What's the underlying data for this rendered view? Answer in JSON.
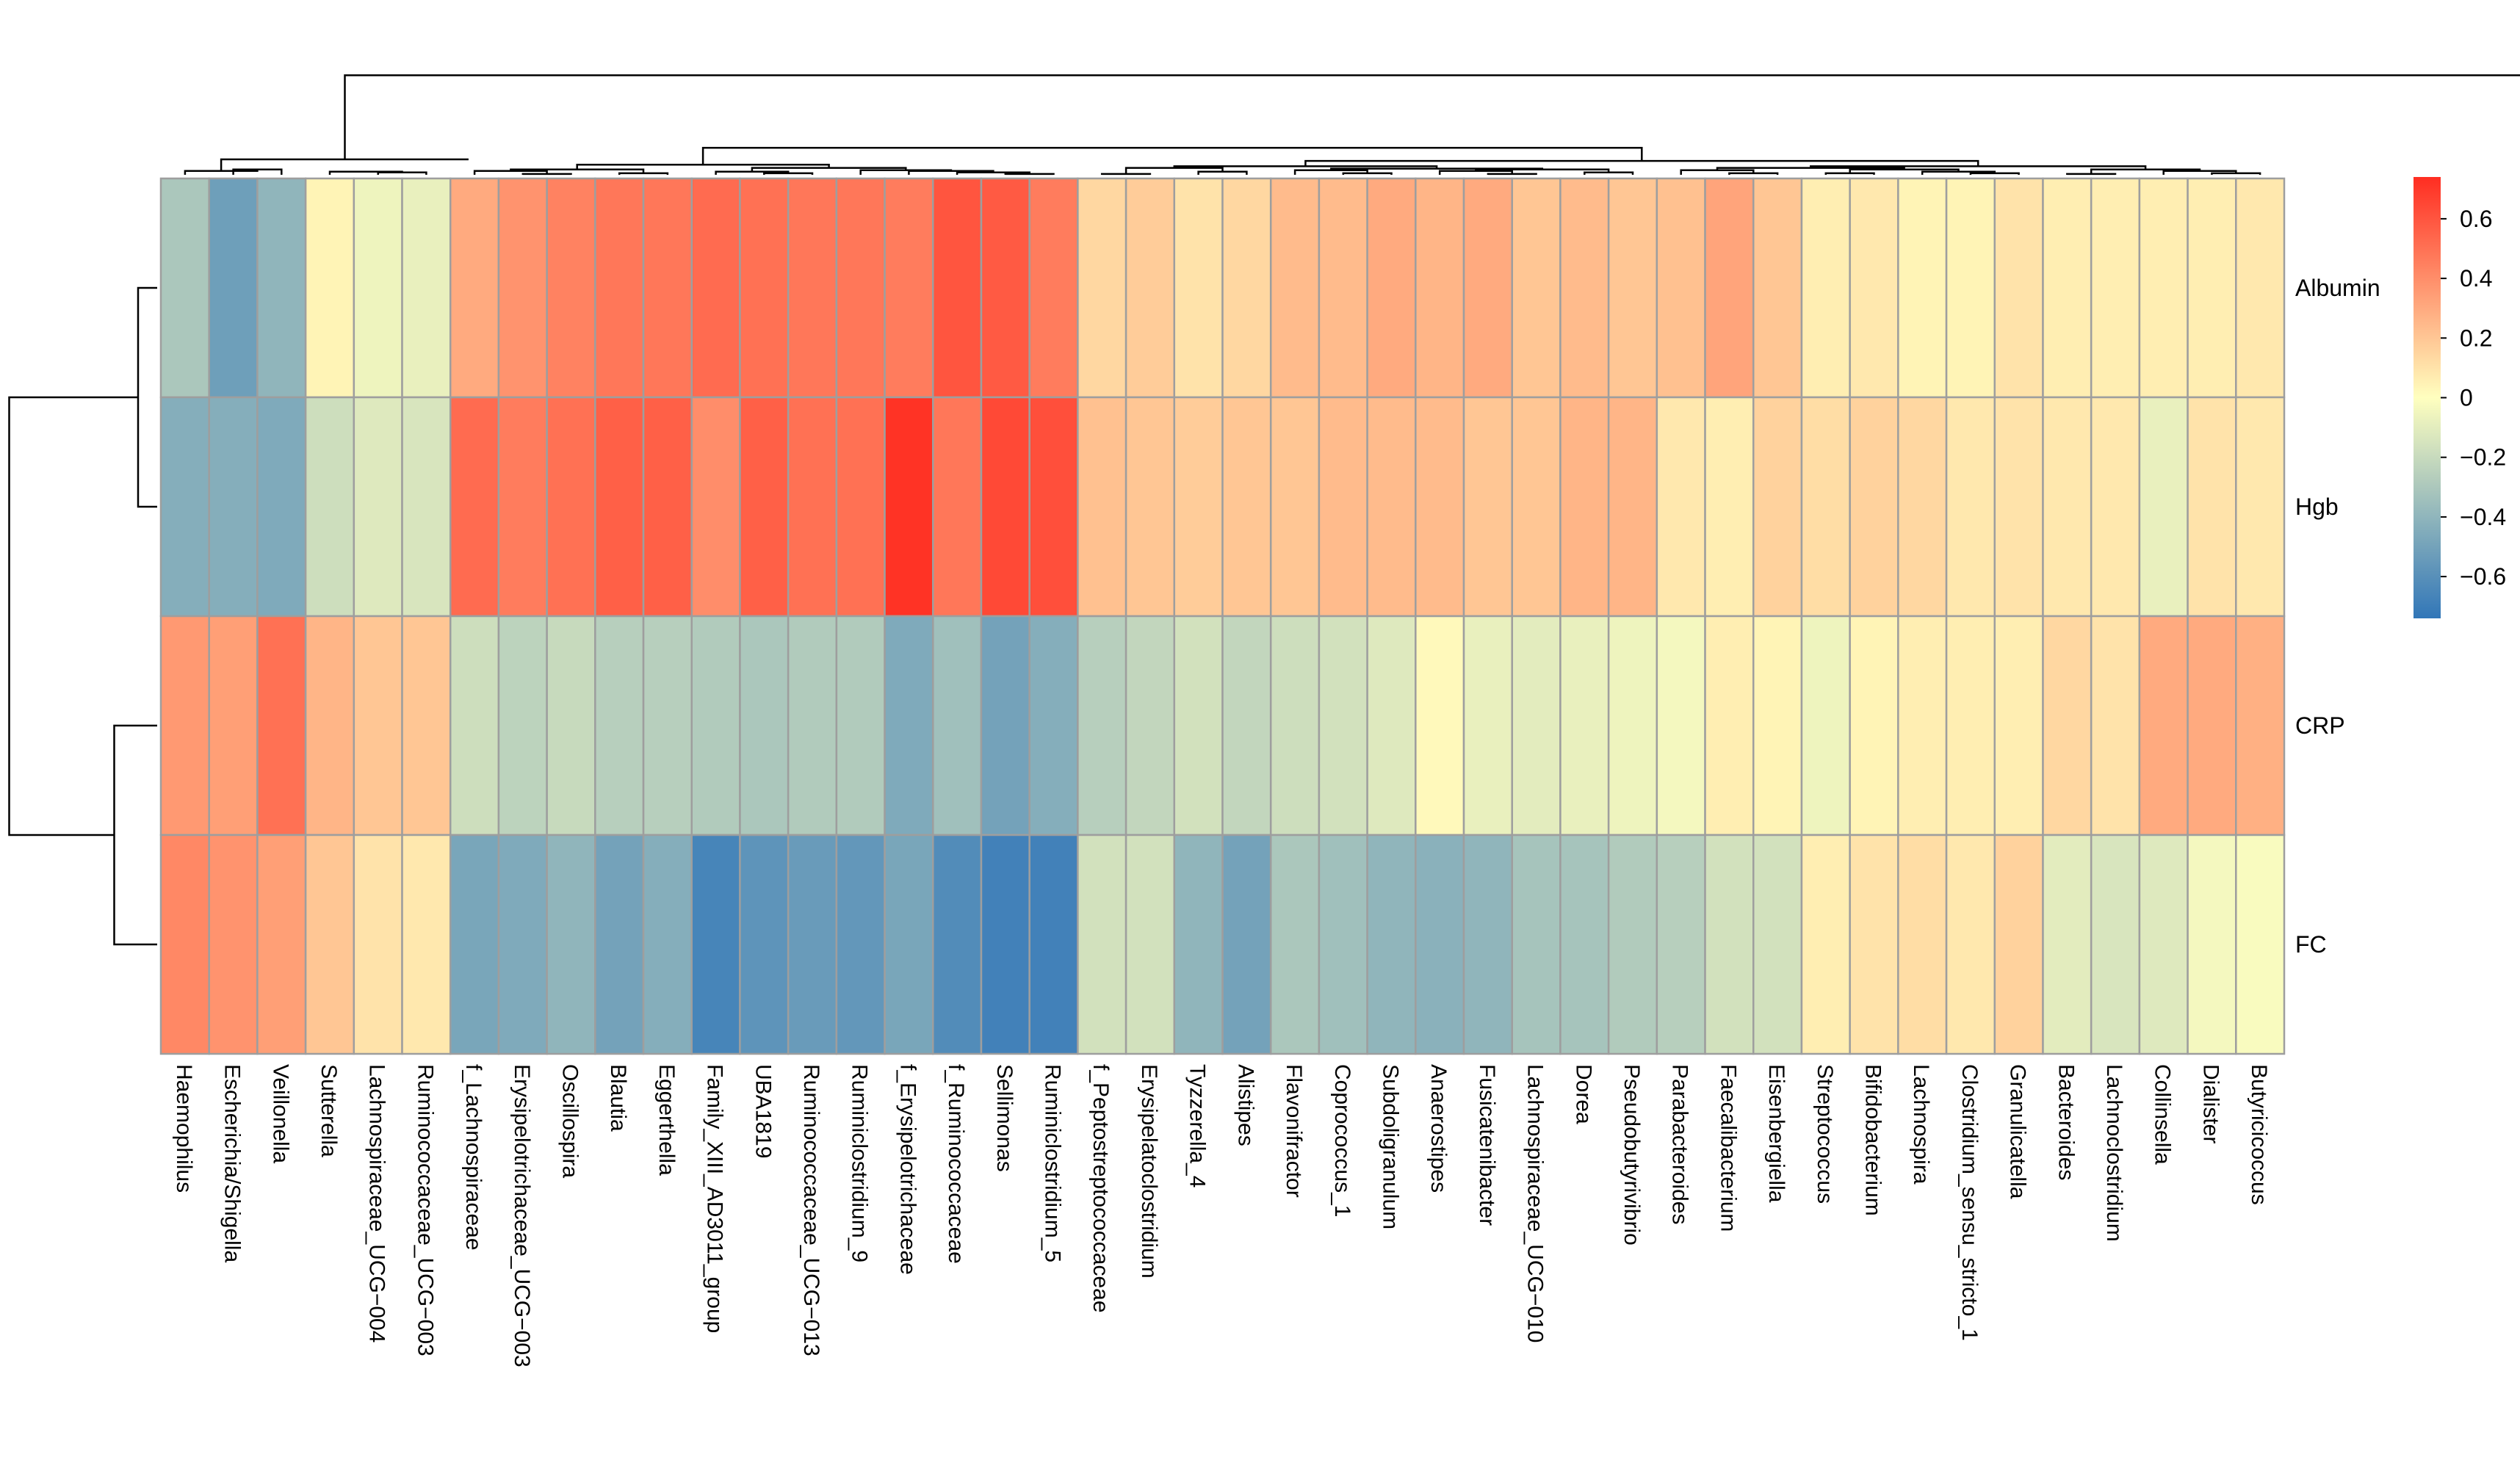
{
  "chart_data": {
    "type": "heatmap",
    "title": "",
    "row_labels": [
      "Albumin",
      "Hgb",
      "CRP",
      "FC"
    ],
    "col_labels": [
      "Haemophilus",
      "Escherichia/Shigella",
      "Veillonella",
      "Sutterella",
      "Lachnospiraceae_UCG−004",
      "Ruminococcaceae_UCG−003",
      "f_Lachnospiraceae",
      "Erysipelotrichaceae_UCG−003",
      "Oscillospira",
      "Blautia",
      "Eggerthella",
      "Family_XIII_AD3011_group",
      "UBA1819",
      "Ruminococcaceae_UCG−013",
      "Ruminiclostridium_9",
      "f_Erysipelotrichaceae",
      "f_Ruminococcaceae",
      "Sellimonas",
      "Ruminiclostridium_5",
      "f_Peptostreptococcaceae",
      "Erysipelatoclostridium",
      "Tyzzerella_4",
      "Alistipes",
      "Flavonifractor",
      "Coprococcus_1",
      "Subdoligranulum",
      "Anaerostipes",
      "Fusicatenibacter",
      "Lachnospiraceae_UCG−010",
      "Dorea",
      "Pseudobutyrivibrio",
      "Parabacteroides",
      "Faecalibacterium",
      "Eisenbergiella",
      "Streptococcus",
      "Bifidobacterium",
      "Lachnospira",
      "Clostridium_sensu_stricto_1",
      "Granulicatella",
      "Bacteroides",
      "Lachnoclostridium",
      "Collinsella",
      "Dialister",
      "Butyricicoccus"
    ],
    "values": [
      [
        -0.3,
        -0.52,
        -0.4,
        0.04,
        -0.06,
        -0.08,
        0.3,
        0.38,
        0.44,
        0.48,
        0.48,
        0.52,
        0.5,
        0.48,
        0.48,
        0.46,
        0.6,
        0.58,
        0.46,
        0.14,
        0.18,
        0.1,
        0.14,
        0.24,
        0.24,
        0.3,
        0.26,
        0.3,
        0.2,
        0.24,
        0.2,
        0.22,
        0.32,
        0.2,
        0.06,
        0.08,
        0.04,
        0.04,
        0.1,
        0.06,
        0.06,
        0.06,
        0.06,
        0.08
      ],
      [
        -0.44,
        -0.44,
        -0.46,
        -0.18,
        -0.12,
        -0.14,
        0.52,
        0.46,
        0.5,
        0.56,
        0.56,
        0.4,
        0.56,
        0.5,
        0.5,
        0.72,
        0.48,
        0.64,
        0.62,
        0.22,
        0.2,
        0.18,
        0.2,
        0.2,
        0.24,
        0.24,
        0.24,
        0.2,
        0.2,
        0.26,
        0.26,
        0.08,
        0.06,
        0.16,
        0.12,
        0.16,
        0.14,
        0.08,
        0.1,
        0.08,
        0.08,
        -0.08,
        0.1,
        0.08
      ],
      [
        0.36,
        0.34,
        0.5,
        0.26,
        0.2,
        0.2,
        -0.18,
        -0.24,
        -0.2,
        -0.26,
        -0.26,
        -0.28,
        -0.3,
        -0.28,
        -0.28,
        -0.46,
        -0.34,
        -0.5,
        -0.44,
        -0.26,
        -0.22,
        -0.16,
        -0.22,
        -0.18,
        -0.16,
        -0.12,
        0.02,
        -0.08,
        -0.1,
        -0.08,
        -0.06,
        -0.04,
        0.06,
        0.04,
        -0.06,
        0.04,
        0.06,
        0.06,
        0.06,
        0.14,
        0.1,
        0.3,
        0.3,
        0.28
      ],
      [
        0.42,
        0.38,
        0.34,
        0.2,
        0.1,
        0.08,
        -0.48,
        -0.46,
        -0.4,
        -0.5,
        -0.44,
        -0.66,
        -0.58,
        -0.54,
        -0.56,
        -0.48,
        -0.62,
        -0.68,
        -0.68,
        -0.16,
        -0.16,
        -0.4,
        -0.5,
        -0.3,
        -0.34,
        -0.4,
        -0.42,
        -0.4,
        -0.32,
        -0.32,
        -0.28,
        -0.26,
        -0.16,
        -0.16,
        0.06,
        0.1,
        0.12,
        0.08,
        0.16,
        -0.1,
        -0.14,
        -0.12,
        -0.04,
        -0.02
      ]
    ],
    "legend": {
      "position": "right",
      "range": [
        -0.74,
        0.74
      ],
      "ticks": [
        0.6,
        0.4,
        0.2,
        0,
        -0.2,
        -0.4,
        -0.6
      ],
      "tick_labels": [
        "0.6",
        "0.4",
        "0.2",
        "0",
        "−0.2",
        "−0.4",
        "−0.6"
      ]
    },
    "dendrograms": {
      "columns": "top",
      "rows": "left"
    },
    "color_scale": [
      "#3176b8",
      "#ffffbf",
      "#ff2d21"
    ]
  }
}
